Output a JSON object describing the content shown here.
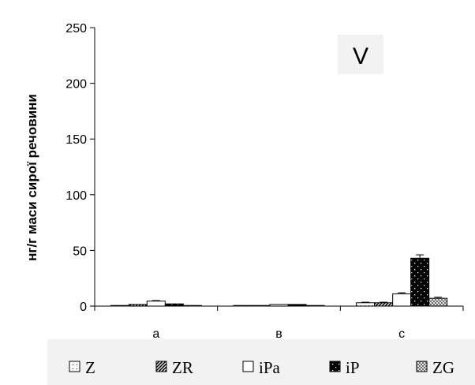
{
  "chart_data": {
    "type": "bar",
    "panel_label": "V",
    "ylabel": "нг/г маси сирої речовини",
    "xlabel": "",
    "ylim": [
      0,
      250
    ],
    "yticks": [
      0,
      50,
      100,
      150,
      200,
      250
    ],
    "categories": [
      "a",
      "в",
      "c"
    ],
    "series": [
      {
        "name": "Z",
        "values": [
          0.5,
          0.3,
          3
        ],
        "errors": [
          0,
          0,
          0.5
        ]
      },
      {
        "name": "ZR",
        "values": [
          1.5,
          0.5,
          3
        ],
        "errors": [
          0,
          0,
          0.5
        ]
      },
      {
        "name": "iPa",
        "values": [
          4.5,
          1.5,
          11
        ],
        "errors": [
          0.5,
          0,
          1
        ]
      },
      {
        "name": "iP",
        "values": [
          2,
          1.5,
          43
        ],
        "errors": [
          0,
          0,
          3
        ]
      },
      {
        "name": "ZG",
        "values": [
          0.5,
          0.3,
          7
        ],
        "errors": [
          0,
          0,
          1
        ]
      }
    ],
    "legend_position": "bottom",
    "grid": false
  }
}
